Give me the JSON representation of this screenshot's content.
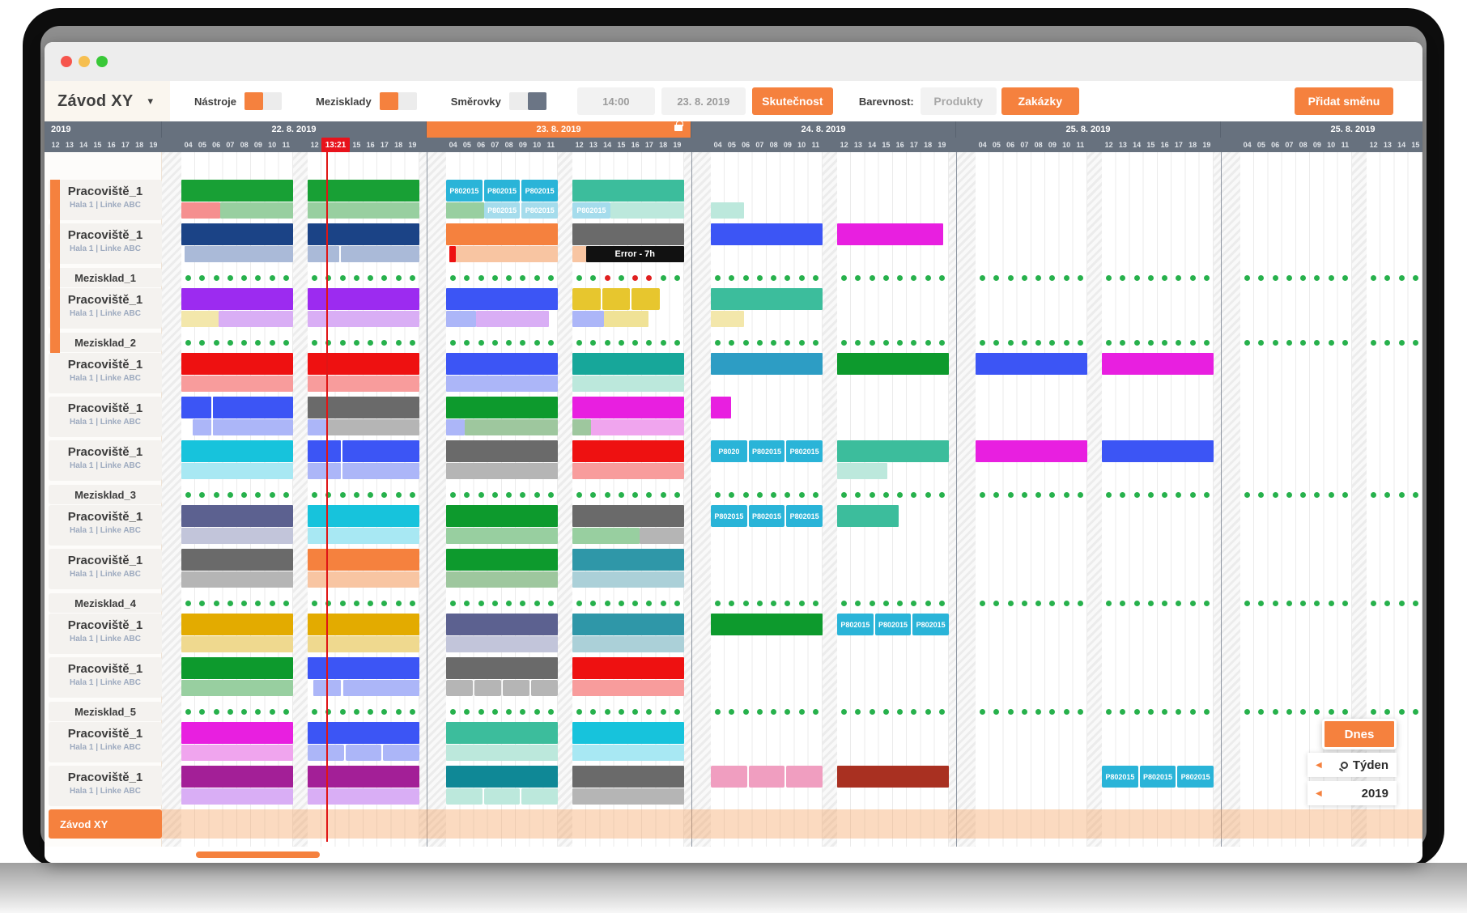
{
  "toolbar": {
    "plant_selector": "Závod XY",
    "toggles": [
      {
        "label": "Nástroje",
        "on": true
      },
      {
        "label": "Mezisklady",
        "on": true
      },
      {
        "label": "Směrovky",
        "on": false
      }
    ],
    "time_value": "14:00",
    "date_value": "23. 8. 2019",
    "reality_button": "Skutečnost",
    "colorby_label": "Barevnost:",
    "colorby_options": [
      {
        "label": "Produkty",
        "active": false
      },
      {
        "label": "Zakázky",
        "active": true
      }
    ],
    "add_shift_button": "Přidat směnu"
  },
  "timeline": {
    "year_label": "2019",
    "pre_hours": [
      "12",
      "13",
      "14",
      "15",
      "16",
      "17",
      "18",
      "19"
    ],
    "days": [
      {
        "label": "22. 8. 2019",
        "active": false,
        "locked": false
      },
      {
        "label": "23. 8. 2019",
        "active": true,
        "locked": true
      },
      {
        "label": "24. 8. 2019",
        "active": false,
        "locked": false
      },
      {
        "label": "25. 8. 2019",
        "active": false,
        "locked": false
      },
      {
        "label": "25. 8. 2019",
        "active": false,
        "locked": false
      }
    ],
    "morning_hours": [
      "04",
      "05",
      "06",
      "07",
      "08",
      "09",
      "10",
      "11"
    ],
    "evening_hours": [
      "12",
      "13",
      "14",
      "15",
      "16",
      "17",
      "18",
      "19"
    ],
    "now_label": "13:21"
  },
  "colors": {
    "accent": "#f5813e",
    "header_slate": "#67717e",
    "now_red": "#e8131c",
    "green": "#18a035",
    "lightgreen": "#98cfa0",
    "salmon": "#f58f8f",
    "navy": "#1b4386",
    "steel": "#aabad8",
    "orange": "#f5813e",
    "lightorange": "#f8c5a2",
    "red": "#ee1111",
    "lightred": "#f89c9c",
    "darkgray": "#6a6a6a",
    "lightgray": "#b5b5b5",
    "black": "#111111",
    "royal": "#3c55f5",
    "periwinkle": "#acb6f8",
    "magenta": "#e81fe0",
    "orchid": "#f0a5ee",
    "purple": "#9c2bf0",
    "lilac": "#d9aef5",
    "paleyellow": "#f3e7ab",
    "yellow": "#e7c62e",
    "lightyellow": "#f0e296",
    "cyan": "#17c3dc",
    "lightcyan": "#a8e8f3",
    "seafoam": "#3cbd9c",
    "paleseafoam": "#bce8dc",
    "chip": "#2ab4d8",
    "chiplight": "#a5dcec",
    "teal": "#17a79a",
    "tealblue": "#2d9dc4",
    "green2": "#0d9a2d",
    "sage": "#9ec79e",
    "gold": "#e3ab00",
    "palegold": "#efd98f",
    "slate": "#5c6190",
    "lightslate": "#c2c5da",
    "teal2": "#2f97a8",
    "paleteal2": "#abd0d8",
    "darkmagenta": "#a31f97",
    "tealdark": "#0f8896",
    "maroon": "#a93021",
    "pink": "#f09ec0",
    "dotgreen": "#27b14c",
    "dotred": "#e02020",
    "band": "#f7d9c2"
  },
  "rows": [
    {
      "type": "work",
      "label": "Pracoviště_1",
      "sub": "Hala 1  |  Linke ABC",
      "plan": [
        [
          0,
          0,
          1,
          "green"
        ],
        [
          1,
          0,
          1,
          "green"
        ],
        [
          2,
          0,
          1,
          "chip",
          {
            "chips": [
              "P802015",
              "P802015",
              "P802015"
            ]
          }
        ],
        [
          3,
          0,
          1,
          "seafoam"
        ]
      ],
      "act": [
        [
          0,
          0,
          0.35,
          "salmon"
        ],
        [
          0,
          0.35,
          0.65,
          "lightgreen"
        ],
        [
          1,
          0,
          1,
          "lightgreen"
        ],
        [
          2,
          0,
          0.34,
          "lightgreen"
        ],
        [
          2,
          0.34,
          0.66,
          "chiplight",
          {
            "chips": [
              "P802015",
              "P802015"
            ]
          }
        ],
        [
          3,
          0,
          0.34,
          "chiplight",
          {
            "chips": [
              "P802015"
            ]
          }
        ],
        [
          3,
          0.34,
          0.66,
          "paleseafoam"
        ],
        [
          4,
          0,
          0.3,
          "paleseafoam"
        ]
      ]
    },
    {
      "type": "work",
      "label": "Pracoviště_1",
      "sub": "Hala 1  |  Linke ABC",
      "plan": [
        [
          0,
          0,
          1,
          "navy"
        ],
        [
          1,
          0,
          1,
          "navy"
        ],
        [
          2,
          0,
          1,
          "orange"
        ],
        [
          3,
          0,
          1,
          "darkgray"
        ],
        [
          4,
          0,
          1,
          "royal"
        ],
        [
          5,
          0,
          0.95,
          "magenta"
        ]
      ],
      "act": [
        [
          0,
          0.03,
          0.97,
          "steel"
        ],
        [
          1,
          0,
          0.28,
          "steel"
        ],
        [
          1,
          0.3,
          0.7,
          "steel"
        ],
        [
          2,
          0.03,
          0.06,
          "red"
        ],
        [
          2,
          0.09,
          0.91,
          "lightorange"
        ],
        [
          3,
          0,
          0.12,
          "lightorange"
        ],
        [
          3,
          0.12,
          0.88,
          "black",
          {
            "t": "Error - 7h"
          }
        ]
      ]
    },
    {
      "type": "store",
      "label": "Mezisklad_1",
      "red": {
        "3": [
          2,
          4,
          5
        ]
      }
    },
    {
      "type": "work",
      "label": "Pracoviště_1",
      "sub": "Hala 1  |  Linke ABC",
      "plan": [
        [
          0,
          0,
          1,
          "purple"
        ],
        [
          1,
          0,
          1,
          "purple"
        ],
        [
          2,
          0,
          1,
          "royal"
        ],
        [
          3,
          0,
          0.78,
          "yellow",
          {
            "seg": 3
          }
        ],
        [
          4,
          0,
          1,
          "seafoam"
        ]
      ],
      "act": [
        [
          0,
          0,
          0.33,
          "paleyellow"
        ],
        [
          0,
          0.33,
          0.67,
          "lilac"
        ],
        [
          1,
          0,
          1,
          "lilac"
        ],
        [
          2,
          0,
          0.27,
          "periwinkle"
        ],
        [
          2,
          0.27,
          0.65,
          "lilac"
        ],
        [
          3,
          0,
          0.28,
          "periwinkle"
        ],
        [
          3,
          0.28,
          0.4,
          "lightyellow"
        ],
        [
          4,
          0,
          0.3,
          "paleyellow"
        ]
      ]
    },
    {
      "type": "store",
      "label": "Mezisklad_2"
    },
    {
      "type": "work",
      "label": "Pracoviště_1",
      "sub": "Hala 1  |  Linke ABC",
      "plan": [
        [
          0,
          0,
          1,
          "red"
        ],
        [
          1,
          0,
          1,
          "red"
        ],
        [
          2,
          0,
          1,
          "royal"
        ],
        [
          3,
          0,
          1,
          "teal"
        ],
        [
          4,
          0,
          1,
          "tealblue"
        ],
        [
          5,
          0,
          1,
          "green2"
        ],
        [
          6,
          0,
          1,
          "royal"
        ],
        [
          7,
          0,
          1,
          "magenta"
        ]
      ],
      "act": [
        [
          0,
          0,
          1,
          "lightred"
        ],
        [
          1,
          0,
          1,
          "lightred"
        ],
        [
          2,
          0,
          1,
          "periwinkle"
        ],
        [
          3,
          0,
          1,
          "paleseafoam"
        ]
      ]
    },
    {
      "type": "work",
      "label": "Pracoviště_1",
      "sub": "Hala 1  |  Linke ABC",
      "plan": [
        [
          0,
          0,
          0.27,
          "royal"
        ],
        [
          0,
          0.28,
          0.72,
          "royal"
        ],
        [
          1,
          0,
          1,
          "darkgray"
        ],
        [
          2,
          0,
          1,
          "green2"
        ],
        [
          3,
          0,
          1,
          "magenta"
        ],
        [
          4,
          0,
          0.18,
          "magenta"
        ]
      ],
      "act": [
        [
          0,
          0.1,
          0.17,
          "periwinkle"
        ],
        [
          0,
          0.28,
          0.72,
          "periwinkle"
        ],
        [
          1,
          0,
          0.17,
          "periwinkle"
        ],
        [
          1,
          0.17,
          0.83,
          "lightgray"
        ],
        [
          2,
          0,
          0.17,
          "periwinkle"
        ],
        [
          2,
          0.17,
          0.83,
          "sage"
        ],
        [
          3,
          0,
          0.17,
          "sage"
        ],
        [
          3,
          0.17,
          0.83,
          "orchid"
        ]
      ]
    },
    {
      "type": "work",
      "label": "Pracoviště_1",
      "sub": "Hala 1  |  Linke ABC",
      "plan": [
        [
          0,
          0,
          1,
          "cyan"
        ],
        [
          1,
          0,
          0.3,
          "royal"
        ],
        [
          1,
          0.31,
          0.69,
          "royal"
        ],
        [
          2,
          0,
          1,
          "darkgray"
        ],
        [
          3,
          0,
          1,
          "red"
        ],
        [
          4,
          0,
          1,
          "chip",
          {
            "chips": [
              "P8020",
              "P802015",
              "P802015"
            ]
          }
        ],
        [
          5,
          0,
          1,
          "seafoam"
        ],
        [
          6,
          0,
          1,
          "magenta"
        ],
        [
          7,
          0,
          1,
          "royal"
        ]
      ],
      "act": [
        [
          0,
          0,
          1,
          "lightcyan"
        ],
        [
          1,
          0,
          0.3,
          "periwinkle"
        ],
        [
          1,
          0.31,
          0.69,
          "periwinkle"
        ],
        [
          2,
          0,
          1,
          "lightgray"
        ],
        [
          3,
          0,
          1,
          "lightred"
        ],
        [
          5,
          0,
          0.45,
          "paleseafoam"
        ]
      ]
    },
    {
      "type": "store",
      "label": "Mezisklad_3"
    },
    {
      "type": "work",
      "label": "Pracoviště_1",
      "sub": "Hala 1  |  Linke ABC",
      "plan": [
        [
          0,
          0,
          1,
          "slate"
        ],
        [
          1,
          0,
          1,
          "cyan"
        ],
        [
          2,
          0,
          1,
          "green2"
        ],
        [
          3,
          0,
          1,
          "darkgray"
        ],
        [
          4,
          0,
          1,
          "chip",
          {
            "chips": [
              "P802015",
              "P802015",
              "P802015"
            ]
          }
        ],
        [
          5,
          0,
          0.55,
          "seafoam"
        ]
      ],
      "act": [
        [
          0,
          0,
          1,
          "lightslate"
        ],
        [
          1,
          0,
          1,
          "lightcyan"
        ],
        [
          2,
          0,
          1,
          "lightgreen"
        ],
        [
          3,
          0,
          0.6,
          "lightgreen"
        ],
        [
          3,
          0.6,
          0.4,
          "lightgray"
        ]
      ]
    },
    {
      "type": "work",
      "label": "Pracoviště_1",
      "sub": "Hala 1  |  Linke ABC",
      "plan": [
        [
          0,
          0,
          1,
          "darkgray"
        ],
        [
          1,
          0,
          1,
          "orange"
        ],
        [
          2,
          0,
          1,
          "green2"
        ],
        [
          3,
          0,
          1,
          "teal2"
        ]
      ],
      "act": [
        [
          0,
          0,
          1,
          "lightgray"
        ],
        [
          1,
          0,
          1,
          "lightorange"
        ],
        [
          2,
          0,
          1,
          "sage"
        ],
        [
          3,
          0,
          1,
          "paleteal2"
        ]
      ]
    },
    {
      "type": "store",
      "label": "Mezisklad_4"
    },
    {
      "type": "work",
      "label": "Pracoviště_1",
      "sub": "Hala 1  |  Linke ABC",
      "plan": [
        [
          0,
          0,
          1,
          "gold"
        ],
        [
          1,
          0,
          1,
          "gold"
        ],
        [
          2,
          0,
          1,
          "slate"
        ],
        [
          3,
          0,
          1,
          "teal2"
        ],
        [
          4,
          0,
          1,
          "green2"
        ],
        [
          5,
          0,
          1,
          "chip",
          {
            "chips": [
              "P802015",
              "P802015",
              "P802015"
            ]
          }
        ]
      ],
      "act": [
        [
          0,
          0,
          1,
          "palegold"
        ],
        [
          1,
          0,
          1,
          "palegold"
        ],
        [
          2,
          0,
          1,
          "lightslate"
        ],
        [
          3,
          0,
          1,
          "paleteal2"
        ]
      ]
    },
    {
      "type": "work",
      "label": "Pracoviště_1",
      "sub": "Hala 1  |  Linke ABC",
      "plan": [
        [
          0,
          0,
          1,
          "green2"
        ],
        [
          1,
          0,
          1,
          "royal"
        ],
        [
          2,
          0,
          1,
          "darkgray"
        ],
        [
          3,
          0,
          1,
          "red"
        ]
      ],
      "act": [
        [
          0,
          0,
          1,
          "lightgreen"
        ],
        [
          1,
          0.05,
          0.25,
          "periwinkle"
        ],
        [
          1,
          0.32,
          0.68,
          "periwinkle"
        ],
        [
          2,
          0,
          1,
          "lightgray",
          {
            "seg": 4
          }
        ],
        [
          3,
          0,
          1,
          "lightred"
        ]
      ]
    },
    {
      "type": "store",
      "label": "Mezisklad_5"
    },
    {
      "type": "work",
      "label": "Pracoviště_1",
      "sub": "Hala 1  |  Linke ABC",
      "plan": [
        [
          0,
          0,
          1,
          "magenta"
        ],
        [
          1,
          0,
          1,
          "royal"
        ],
        [
          2,
          0,
          1,
          "seafoam"
        ],
        [
          3,
          0,
          1,
          "cyan"
        ]
      ],
      "act": [
        [
          0,
          0,
          1,
          "orchid"
        ],
        [
          1,
          0,
          1,
          "periwinkle",
          {
            "seg": 3
          }
        ],
        [
          2,
          0,
          1,
          "paleseafoam"
        ],
        [
          3,
          0,
          1,
          "lightcyan"
        ]
      ]
    },
    {
      "type": "work",
      "label": "Pracoviště_1",
      "sub": "Hala 1  |  Linke ABC",
      "plan": [
        [
          0,
          0,
          1,
          "darkmagenta"
        ],
        [
          1,
          0,
          1,
          "darkmagenta"
        ],
        [
          2,
          0,
          1,
          "tealdark"
        ],
        [
          3,
          0,
          1,
          "darkgray"
        ],
        [
          4,
          0,
          1,
          "pink",
          {
            "seg": 3
          }
        ],
        [
          5,
          0,
          1,
          "maroon"
        ],
        [
          7,
          0,
          1,
          "chip",
          {
            "chips": [
              "P802015",
              "P802015",
              "P802015"
            ]
          }
        ]
      ],
      "act": [
        [
          0,
          0,
          1,
          "lilac"
        ],
        [
          1,
          0,
          1,
          "lilac"
        ],
        [
          2,
          0,
          1,
          "paleseafoam",
          {
            "seg": 3
          }
        ],
        [
          3,
          0,
          1,
          "lightgray"
        ]
      ]
    },
    {
      "type": "plant",
      "label": "Závod XY"
    }
  ],
  "widgets": {
    "today_button": "Dnes",
    "zoom_week": "Týden",
    "zoom_year": "2019"
  }
}
